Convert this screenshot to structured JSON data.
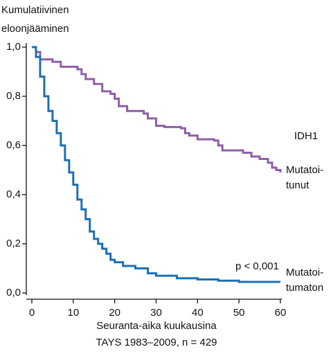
{
  "chart_data": {
    "type": "step",
    "ylabel": [
      "Kumulatiivinen",
      "eloonjääminen"
    ],
    "xlabel": [
      "Seuranta-aika kuukausina",
      "TAYS 1983–2009, n = 429"
    ],
    "annotations": [
      "IDH1",
      "p < 0,001"
    ],
    "xlim": [
      0,
      60
    ],
    "xticks": [
      0,
      10,
      20,
      30,
      40,
      50,
      60
    ],
    "ylim": [
      0,
      1
    ],
    "yticks": [
      {
        "value": 0,
        "label": "0,0"
      },
      {
        "value": 0.2,
        "label": "0,2"
      },
      {
        "value": 0.4,
        "label": "0,4"
      },
      {
        "value": 0.6,
        "label": "0,6"
      },
      {
        "value": 0.8,
        "label": "0,8"
      },
      {
        "value": 1,
        "label": "1,0"
      }
    ],
    "series": [
      {
        "name": [
          "Mutatoi-",
          "tunut"
        ],
        "color": "#8e5ea8",
        "x": [
          0,
          1,
          2,
          5,
          7,
          11,
          12,
          13,
          15,
          17,
          19,
          20,
          21,
          23,
          27,
          28,
          30,
          32,
          36,
          37,
          38,
          40,
          44,
          45,
          46,
          51,
          53,
          55,
          57,
          58,
          59,
          60
        ],
        "values": [
          1.0,
          0.98,
          0.95,
          0.94,
          0.92,
          0.91,
          0.89,
          0.87,
          0.85,
          0.82,
          0.81,
          0.79,
          0.76,
          0.74,
          0.73,
          0.71,
          0.68,
          0.675,
          0.67,
          0.65,
          0.64,
          0.625,
          0.62,
          0.6,
          0.58,
          0.57,
          0.555,
          0.545,
          0.53,
          0.51,
          0.5,
          0.49
        ]
      },
      {
        "name": [
          "Mutatoi-",
          "tumaton"
        ],
        "color": "#1d6fb3",
        "x": [
          0,
          1,
          2,
          3,
          4,
          5,
          6,
          7,
          8,
          9,
          10,
          11,
          12,
          13,
          14,
          15,
          16,
          17,
          18,
          19,
          20,
          22,
          25,
          28,
          30,
          35,
          40,
          45,
          50,
          60
        ],
        "values": [
          1.0,
          0.96,
          0.88,
          0.8,
          0.74,
          0.7,
          0.65,
          0.6,
          0.54,
          0.49,
          0.44,
          0.38,
          0.34,
          0.3,
          0.25,
          0.22,
          0.2,
          0.18,
          0.16,
          0.135,
          0.125,
          0.11,
          0.1,
          0.08,
          0.07,
          0.06,
          0.055,
          0.05,
          0.045,
          0.045
        ]
      }
    ]
  }
}
